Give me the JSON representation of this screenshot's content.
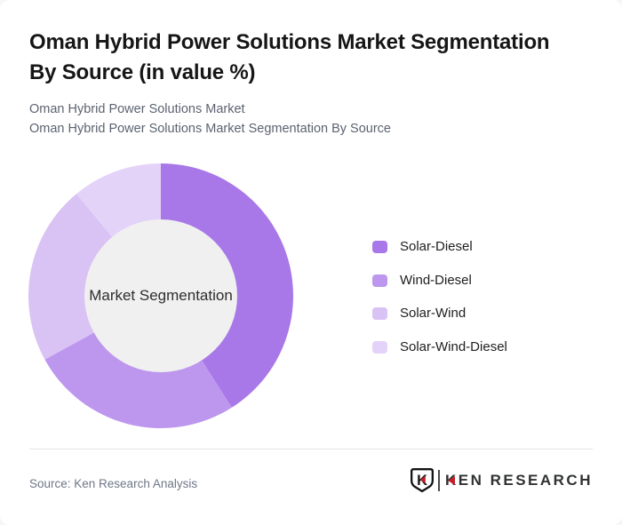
{
  "page": {
    "title_lines": [
      "Oman Hybrid Power Solutions Market Segmentation",
      "By Source (in value %)"
    ],
    "subtitle_lines": [
      "Oman Hybrid Power Solutions Market",
      "Oman Hybrid Power Solutions Market Segmentation By Source"
    ]
  },
  "chart_data": {
    "type": "pie",
    "variant": "donut",
    "title": "Oman Hybrid Power Solutions Market Segmentation By Source (in value %)",
    "center_label": "Market Segmentation",
    "labels": [
      "Solar-Diesel",
      "Wind-Diesel",
      "Solar-Wind",
      "Solar-Wind-Diesel"
    ],
    "values": [
      41,
      26,
      22,
      11
    ],
    "unit": "%",
    "colors": [
      "#a877e8",
      "#bd96ee",
      "#d9c2f4",
      "#e4d3f8"
    ],
    "center_circle_color": "#f0f0f0",
    "start_angle_deg": 0,
    "direction": "clockwise",
    "inner_radius_ratio": 0.58,
    "legend_position": "right"
  },
  "footer": {
    "source_text": "Source: Ken Research Analysis",
    "logo_text": "KEN RESEARCH"
  }
}
